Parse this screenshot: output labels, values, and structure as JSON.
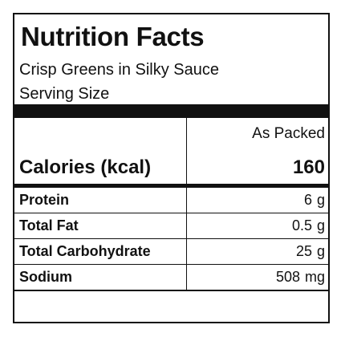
{
  "label": {
    "title": "Nutrition Facts",
    "product_name": "Crisp Greens in Silky Sauce",
    "serving_size_label": "Serving Size",
    "column_header": "As Packed",
    "calories": {
      "label": "Calories (kcal)",
      "value": "160"
    },
    "nutrients": [
      {
        "label": "Protein",
        "amount": "6",
        "unit": "g"
      },
      {
        "label": "Total Fat",
        "amount": "0.5",
        "unit": "g"
      },
      {
        "label": "Total Carbohydrate",
        "amount": "25",
        "unit": "g"
      },
      {
        "label": "Sodium",
        "amount": "508",
        "unit": "mg"
      }
    ]
  }
}
